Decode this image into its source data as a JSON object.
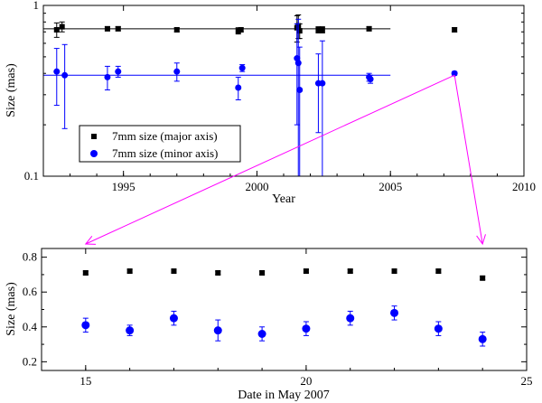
{
  "chart_data": [
    {
      "type": "scatter",
      "xlabel": "Year",
      "ylabel": "Size (mas)",
      "xlim": [
        1992,
        2010
      ],
      "ylim": [
        0.1,
        1
      ],
      "yscale": "log",
      "xticks": [
        1995,
        2000,
        2005,
        2010
      ],
      "yticks": [
        0.1,
        1
      ],
      "ytick_labels": [
        "0.1",
        "1"
      ],
      "grid": false,
      "legend_position": "bottom-left",
      "series": [
        {
          "name": "7mm size (major axis)",
          "marker": "square",
          "color": "#000000",
          "points": [
            {
              "x": 1992.5,
              "y": 0.72,
              "err": 0.07
            },
            {
              "x": 1992.7,
              "y": 0.75,
              "err": 0.05
            },
            {
              "x": 1994.4,
              "y": 0.73,
              "err": 0.02
            },
            {
              "x": 1994.8,
              "y": 0.73,
              "err": 0.02
            },
            {
              "x": 1997.0,
              "y": 0.72,
              "err": 0.02
            },
            {
              "x": 1999.3,
              "y": 0.71,
              "err": 0.03
            },
            {
              "x": 1999.4,
              "y": 0.72,
              "err": 0.02
            },
            {
              "x": 2001.5,
              "y": 0.74,
              "err": 0.13
            },
            {
              "x": 2001.55,
              "y": 0.76,
              "err": 0.12
            },
            {
              "x": 2001.6,
              "y": 0.71,
              "err": 0.07
            },
            {
              "x": 2002.3,
              "y": 0.72,
              "err": 0.03
            },
            {
              "x": 2002.45,
              "y": 0.72,
              "err": 0.03
            },
            {
              "x": 2004.2,
              "y": 0.73,
              "err": 0.02
            },
            {
              "x": 2007.4,
              "y": 0.72,
              "err": 0.02
            }
          ],
          "fit": {
            "x": [
              1992,
              2005
            ],
            "y": 0.73
          }
        },
        {
          "name": "7mm size (minor axis)",
          "marker": "circle",
          "color": "#0000ff",
          "points": [
            {
              "x": 1992.5,
              "y": 0.41,
              "err": 0.15
            },
            {
              "x": 1992.8,
              "y": 0.39,
              "err": 0.2
            },
            {
              "x": 1994.4,
              "y": 0.38,
              "err": 0.06
            },
            {
              "x": 1994.8,
              "y": 0.41,
              "err": 0.03
            },
            {
              "x": 1997.0,
              "y": 0.41,
              "err": 0.05
            },
            {
              "x": 1999.3,
              "y": 0.33,
              "err": 0.05
            },
            {
              "x": 1999.45,
              "y": 0.43,
              "err": 0.02
            },
            {
              "x": 2001.5,
              "y": 0.49,
              "err": 0.29
            },
            {
              "x": 2001.55,
              "y": 0.46,
              "err": 0.37
            },
            {
              "x": 2001.6,
              "y": 0.32,
              "err": 0.25
            },
            {
              "x": 2002.3,
              "y": 0.35,
              "err": 0.17
            },
            {
              "x": 2002.45,
              "y": 0.35,
              "err": 0.27
            },
            {
              "x": 2004.2,
              "y": 0.38,
              "err": 0.02
            },
            {
              "x": 2004.25,
              "y": 0.37,
              "err": 0.02
            },
            {
              "x": 2007.4,
              "y": 0.4,
              "err": 0.01
            }
          ],
          "fit": {
            "x": [
              1992,
              2005
            ],
            "y": 0.39
          }
        }
      ]
    },
    {
      "type": "scatter",
      "xlabel": "Date in May 2007",
      "ylabel": "Size (mas)",
      "xlim": [
        14,
        25
      ],
      "ylim": [
        0.15,
        0.85
      ],
      "xticks": [
        15,
        20,
        25
      ],
      "yticks": [
        0.2,
        0.4,
        0.6,
        0.8
      ],
      "ytick_labels": [
        "0.2",
        "0.4",
        "0.6",
        "0.8"
      ],
      "grid": false,
      "series": [
        {
          "name": "7mm size (major axis)",
          "marker": "square",
          "color": "#000000",
          "points": [
            {
              "x": 15,
              "y": 0.71,
              "err": 0.01
            },
            {
              "x": 16,
              "y": 0.72,
              "err": 0.01
            },
            {
              "x": 17,
              "y": 0.72,
              "err": 0.01
            },
            {
              "x": 18,
              "y": 0.71,
              "err": 0.01
            },
            {
              "x": 19,
              "y": 0.71,
              "err": 0.01
            },
            {
              "x": 20,
              "y": 0.72,
              "err": 0.01
            },
            {
              "x": 21,
              "y": 0.72,
              "err": 0.01
            },
            {
              "x": 22,
              "y": 0.72,
              "err": 0.01
            },
            {
              "x": 23,
              "y": 0.72,
              "err": 0.01
            },
            {
              "x": 24,
              "y": 0.68,
              "err": 0.01
            }
          ]
        },
        {
          "name": "7mm size (minor axis)",
          "marker": "circle",
          "color": "#0000ff",
          "points": [
            {
              "x": 15,
              "y": 0.41,
              "err": 0.04
            },
            {
              "x": 16,
              "y": 0.38,
              "err": 0.03
            },
            {
              "x": 17,
              "y": 0.45,
              "err": 0.04
            },
            {
              "x": 18,
              "y": 0.38,
              "err": 0.06
            },
            {
              "x": 19,
              "y": 0.36,
              "err": 0.04
            },
            {
              "x": 20,
              "y": 0.39,
              "err": 0.04
            },
            {
              "x": 21,
              "y": 0.45,
              "err": 0.04
            },
            {
              "x": 22,
              "y": 0.48,
              "err": 0.04
            },
            {
              "x": 23,
              "y": 0.39,
              "err": 0.04
            },
            {
              "x": 24,
              "y": 0.33,
              "err": 0.04
            }
          ]
        }
      ]
    }
  ],
  "zoom_arrows": {
    "color": "#ff00ff",
    "from": {
      "chart": 0,
      "x": 2007.4,
      "y": 0.4
    },
    "to_left": {
      "chart": 1,
      "x": 15
    },
    "to_right": {
      "chart": 1,
      "x": 24
    }
  }
}
